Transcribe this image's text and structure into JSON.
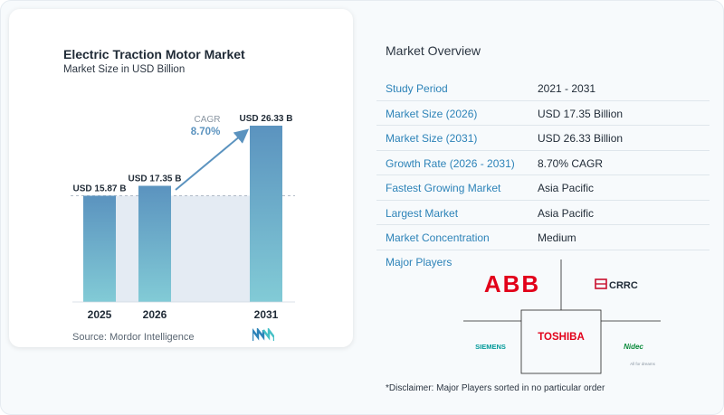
{
  "chart_data": {
    "type": "bar",
    "title": "Electric Traction Motor Market",
    "subtitle": "Market Size in USD Billion",
    "categories": [
      "2025",
      "2026",
      "2031"
    ],
    "values": [
      15.87,
      17.35,
      26.33
    ],
    "data_labels": [
      "USD 15.87 B",
      "USD 17.35 B",
      "USD 26.33 B"
    ],
    "ylim": [
      0,
      26.33
    ],
    "cagr_label": "CAGR",
    "cagr_value": "8.70%",
    "colors": {
      "bar_top": "#5b93bf",
      "bar_bottom": "#82cbd6",
      "band": "#e4ebf3",
      "arrow": "#5b93bf",
      "cagr_text": "#5b93bf"
    }
  },
  "source": "Source:  Mordor Intelligence",
  "logo_icon": "mordor-intelligence-logo",
  "overview": {
    "title": "Market Overview",
    "rows": [
      {
        "label": "Study Period",
        "value": "2021 - 2031"
      },
      {
        "label": "Market Size (2026)",
        "value": "USD 17.35 Billion"
      },
      {
        "label": "Market Size (2031)",
        "value": "USD 26.33 Billion"
      },
      {
        "label": "Growth Rate (2026 - 2031)",
        "value": "8.70% CAGR"
      },
      {
        "label": "Fastest Growing Market",
        "value": "Asia Pacific"
      },
      {
        "label": "Largest Market",
        "value": "Asia Pacific"
      },
      {
        "label": "Market Concentration",
        "value": "Medium"
      }
    ],
    "players_title": "Major Players",
    "players": [
      {
        "name": "ABB",
        "color": "#e2001a"
      },
      {
        "name": "CRRC",
        "color": "#1f2a36"
      },
      {
        "name": "TOSHIBA",
        "color": "#e2001a"
      },
      {
        "name": "SIEMENS",
        "color": "#009999"
      },
      {
        "name": "Nidec",
        "color": "#0a8a3a"
      }
    ],
    "nidec_tagline": "All for dreams",
    "disclaimer": "*Disclaimer: Major Players sorted in no particular order"
  }
}
